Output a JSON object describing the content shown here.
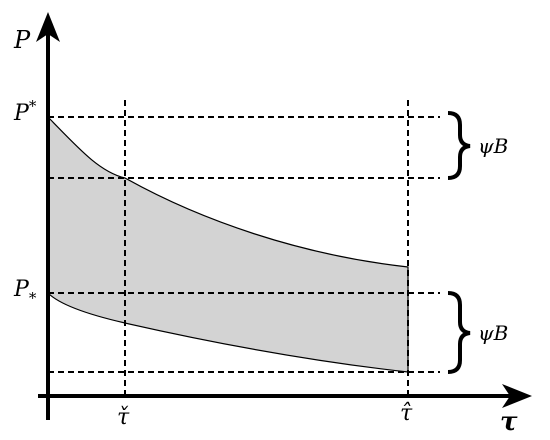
{
  "axes": {
    "y_label": "P",
    "x_label": "τ"
  },
  "y_marks": [
    {
      "base": "P",
      "script": "*",
      "position": "sup"
    },
    {
      "base": "P",
      "script": "*",
      "position": "sub"
    }
  ],
  "x_marks": [
    "τ̌",
    "τ̂"
  ],
  "braces": [
    {
      "label": "ψB"
    },
    {
      "label": "ψB"
    }
  ]
}
